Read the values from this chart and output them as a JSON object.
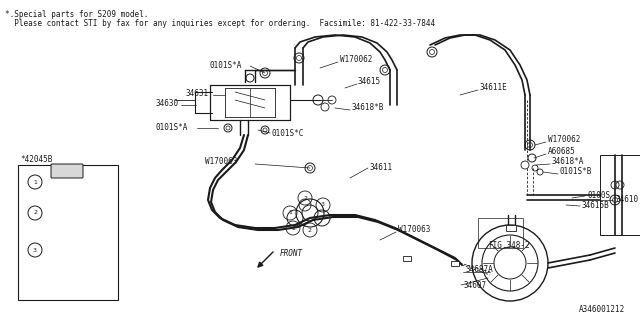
{
  "bg_color": "#ffffff",
  "line_color": "#1a1a1a",
  "fig_width": 6.4,
  "fig_height": 3.2,
  "dpi": 100,
  "header_line1": "*.Special parts for S209 model.",
  "header_line2": "  Please contact STI by fax for any inquiries except for ordering.  Facsimile: 81-422-33-7844",
  "footer_ref": "A346001212"
}
